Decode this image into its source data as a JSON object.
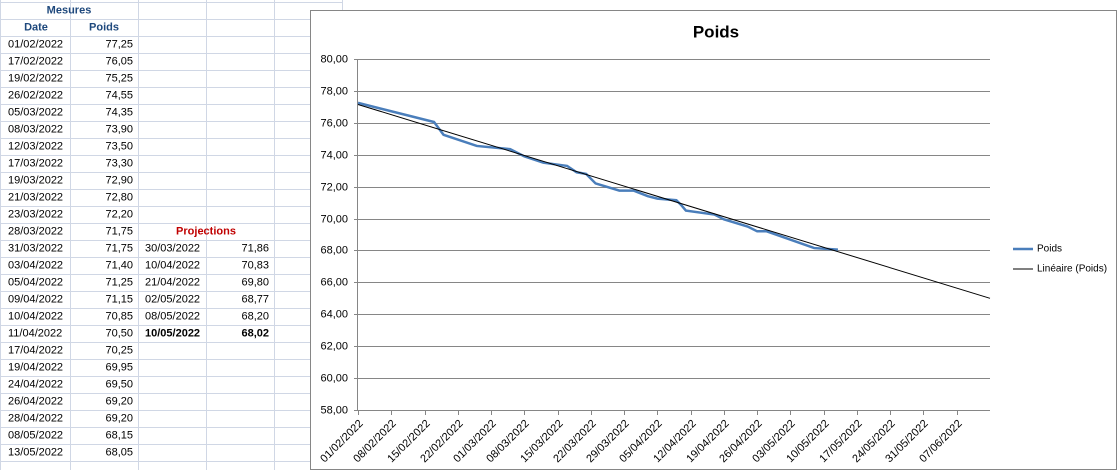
{
  "sheet": {
    "title": "Mesures",
    "headers": [
      "Date",
      "Poids"
    ],
    "rows": [
      [
        "01/02/2022",
        "77,25"
      ],
      [
        "17/02/2022",
        "76,05"
      ],
      [
        "19/02/2022",
        "75,25"
      ],
      [
        "26/02/2022",
        "74,55"
      ],
      [
        "05/03/2022",
        "74,35"
      ],
      [
        "08/03/2022",
        "73,90"
      ],
      [
        "12/03/2022",
        "73,50"
      ],
      [
        "17/03/2022",
        "73,30"
      ],
      [
        "19/03/2022",
        "72,90"
      ],
      [
        "21/03/2022",
        "72,80"
      ],
      [
        "23/03/2022",
        "72,20"
      ],
      [
        "28/03/2022",
        "71,75"
      ],
      [
        "31/03/2022",
        "71,75"
      ],
      [
        "03/04/2022",
        "71,40"
      ],
      [
        "05/04/2022",
        "71,25"
      ],
      [
        "09/04/2022",
        "71,15"
      ],
      [
        "10/04/2022",
        "70,85"
      ],
      [
        "11/04/2022",
        "70,50"
      ],
      [
        "17/04/2022",
        "70,25"
      ],
      [
        "19/04/2022",
        "69,95"
      ],
      [
        "24/04/2022",
        "69,50"
      ],
      [
        "26/04/2022",
        "69,20"
      ],
      [
        "28/04/2022",
        "69,20"
      ],
      [
        "08/05/2022",
        "68,15"
      ],
      [
        "13/05/2022",
        "68,05"
      ]
    ],
    "projections": {
      "title": "Projections",
      "emphasized_row": 5,
      "rows": [
        [
          "30/03/2022",
          "71,86"
        ],
        [
          "10/04/2022",
          "70,83"
        ],
        [
          "21/04/2022",
          "69,80"
        ],
        [
          "02/05/2022",
          "68,77"
        ],
        [
          "08/05/2022",
          "68,20"
        ],
        [
          "10/05/2022",
          "68,02"
        ]
      ]
    }
  },
  "chart_data": {
    "type": "line",
    "title": "Poids",
    "x": [
      "2022-02-01",
      "2022-02-17",
      "2022-02-19",
      "2022-02-26",
      "2022-03-05",
      "2022-03-08",
      "2022-03-12",
      "2022-03-17",
      "2022-03-19",
      "2022-03-21",
      "2022-03-23",
      "2022-03-28",
      "2022-03-31",
      "2022-04-03",
      "2022-04-05",
      "2022-04-09",
      "2022-04-10",
      "2022-04-11",
      "2022-04-17",
      "2022-04-19",
      "2022-04-24",
      "2022-04-26",
      "2022-04-28",
      "2022-05-08",
      "2022-05-13"
    ],
    "series": [
      {
        "name": "Poids",
        "color": "#4a7ebb",
        "values": [
          77.25,
          76.05,
          75.25,
          74.55,
          74.35,
          73.9,
          73.5,
          73.3,
          72.9,
          72.8,
          72.2,
          71.75,
          71.75,
          71.4,
          71.25,
          71.15,
          70.85,
          70.5,
          70.25,
          69.95,
          69.5,
          69.2,
          69.2,
          68.15,
          68.05
        ]
      }
    ],
    "trendline": {
      "name": "Linéaire (Poids)",
      "color": "#000000",
      "x": [
        "2022-02-01",
        "2022-06-14"
      ],
      "values": [
        77.15,
        65.0
      ]
    },
    "xlim": [
      "2022-02-01",
      "2022-06-14"
    ],
    "xticks": [
      {
        "value": "2022-02-01",
        "label": "01/02/2022"
      },
      {
        "value": "2022-02-08",
        "label": "08/02/2022"
      },
      {
        "value": "2022-02-15",
        "label": "15/02/2022"
      },
      {
        "value": "2022-02-22",
        "label": "22/02/2022"
      },
      {
        "value": "2022-03-01",
        "label": "01/03/2022"
      },
      {
        "value": "2022-03-08",
        "label": "08/03/2022"
      },
      {
        "value": "2022-03-15",
        "label": "15/03/2022"
      },
      {
        "value": "2022-03-22",
        "label": "22/03/2022"
      },
      {
        "value": "2022-03-29",
        "label": "29/03/2022"
      },
      {
        "value": "2022-04-05",
        "label": "05/04/2022"
      },
      {
        "value": "2022-04-12",
        "label": "12/04/2022"
      },
      {
        "value": "2022-04-19",
        "label": "19/04/2022"
      },
      {
        "value": "2022-04-26",
        "label": "26/04/2022"
      },
      {
        "value": "2022-05-03",
        "label": "03/05/2022"
      },
      {
        "value": "2022-05-10",
        "label": "10/05/2022"
      },
      {
        "value": "2022-05-17",
        "label": "17/05/2022"
      },
      {
        "value": "2022-05-24",
        "label": "24/05/2022"
      },
      {
        "value": "2022-05-31",
        "label": "31/05/2022"
      },
      {
        "value": "2022-06-07",
        "label": "07/06/2022"
      }
    ],
    "ylim": [
      58,
      80
    ],
    "yticks": [
      {
        "value": 58,
        "label": "58,00"
      },
      {
        "value": 60,
        "label": "60,00"
      },
      {
        "value": 62,
        "label": "62,00"
      },
      {
        "value": 64,
        "label": "64,00"
      },
      {
        "value": 66,
        "label": "66,00"
      },
      {
        "value": 68,
        "label": "68,00"
      },
      {
        "value": 70,
        "label": "70,00"
      },
      {
        "value": 72,
        "label": "72,00"
      },
      {
        "value": 74,
        "label": "74,00"
      },
      {
        "value": 76,
        "label": "76,00"
      },
      {
        "value": 78,
        "label": "78,00"
      },
      {
        "value": 80,
        "label": "80,00"
      }
    ],
    "grid": true,
    "legend": "right"
  }
}
